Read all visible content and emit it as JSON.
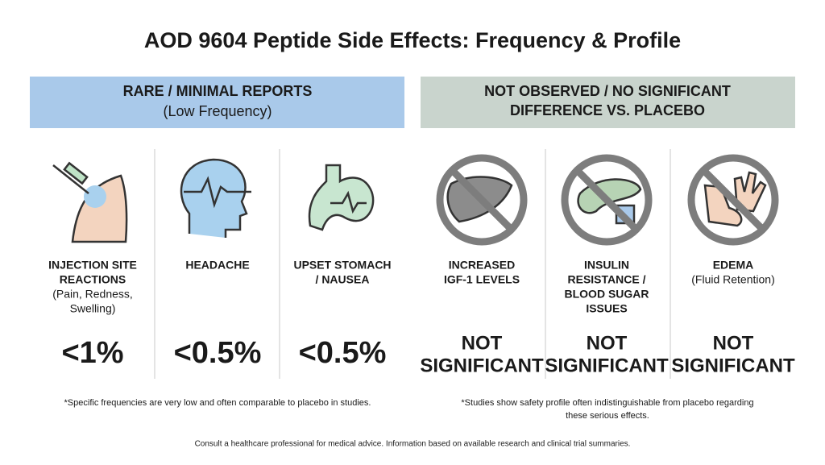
{
  "title": "AOD 9604 Peptide Side Effects: Frequency & Profile",
  "sections": [
    {
      "header": [
        "RARE / MINIMAL REPORTS"
      ],
      "subheader": "(Low Frequency)",
      "items": [
        {
          "label": [
            "INJECTION SITE",
            "REACTIONS"
          ],
          "detail": [
            "(Pain, Redness,",
            "Swelling)"
          ],
          "value": [
            "<1%"
          ]
        },
        {
          "label": [
            "HEADACHE"
          ],
          "detail": [],
          "value": [
            "<0.5%"
          ]
        },
        {
          "label": [
            "UPSET STOMACH",
            "/ NAUSEA"
          ],
          "detail": [],
          "value": [
            "<0.5%"
          ]
        }
      ],
      "footnote": [
        "*Specific frequencies are very low and often comparable to placebo in studies."
      ]
    },
    {
      "header": [
        "NOT OBSERVED / NO SIGNIFICANT",
        "DIFFERENCE VS. PLACEBO"
      ],
      "subheader": null,
      "items": [
        {
          "label": [
            "INCREASED",
            "IGF-1 LEVELS"
          ],
          "detail": [],
          "value": [
            "NOT",
            "SIGNIFICANT"
          ]
        },
        {
          "label": [
            "INSULIN",
            "RESISTANCE /",
            "BLOOD SUGAR",
            "ISSUES"
          ],
          "detail": [],
          "value": [
            "NOT",
            "SIGNIFICANT"
          ]
        },
        {
          "label": [
            "EDEMA"
          ],
          "detail": [
            "(Fluid Retention)"
          ],
          "value": [
            "NOT",
            "SIGNIFICANT"
          ]
        }
      ],
      "footnote": [
        "*Studies show safety profile often indistinguishable from placebo regarding",
        "these serious effects."
      ]
    }
  ],
  "disclaimer": "Consult a healthcare professional for medical advice. Information based on available research and clinical trial summaries."
}
